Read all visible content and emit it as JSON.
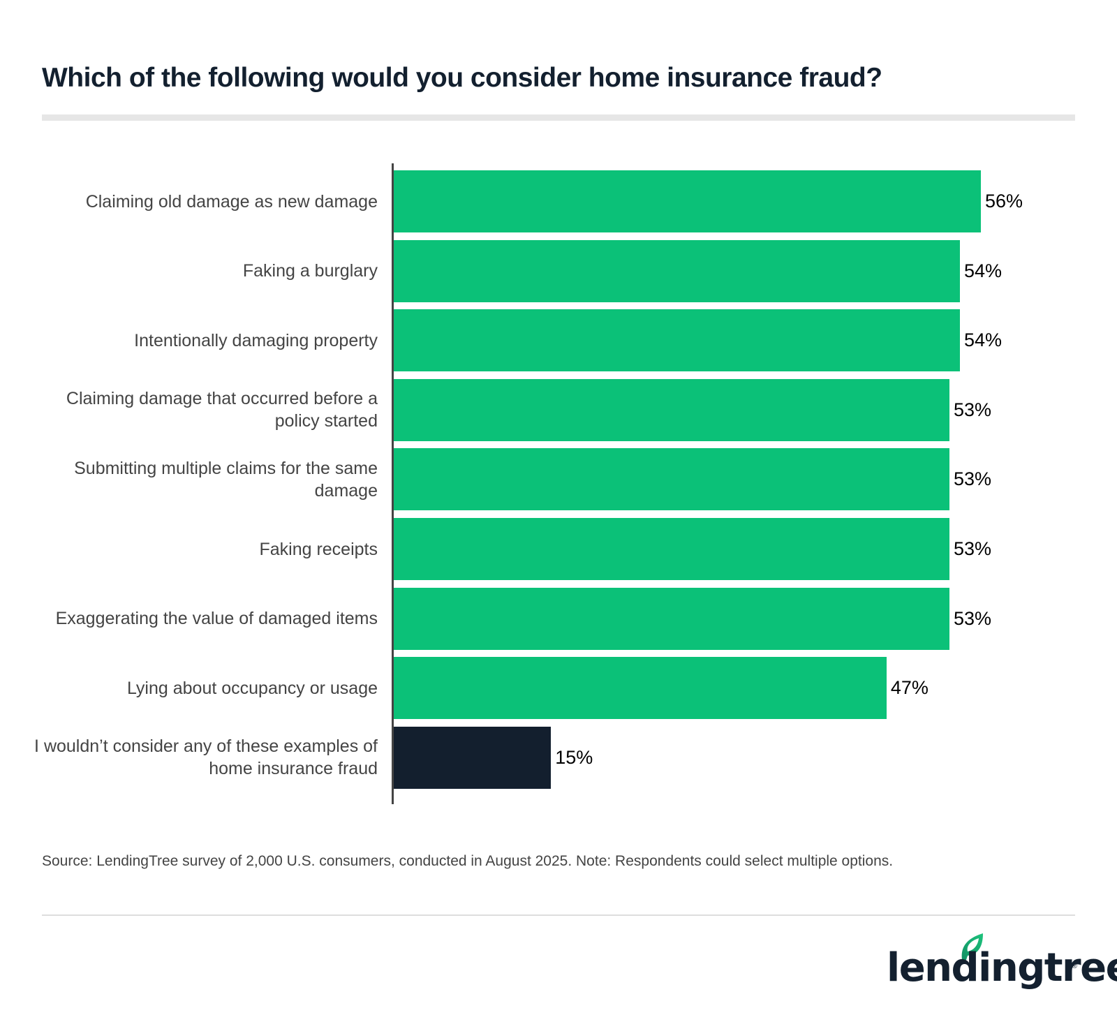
{
  "title": "Which of the following would you consider home insurance fraud?",
  "source": "Source: LendingTree survey of 2,000 U.S. consumers, conducted in August 2025. Note: Respondents could select multiple options.",
  "logo": {
    "text": "lendingtree",
    "registered": "®",
    "icon": "leaf-icon"
  },
  "colors": {
    "primary_bar": "#0bc178",
    "highlight_bar": "#131f2e",
    "title": "#13202f",
    "label": "#444444"
  },
  "rows": [
    {
      "label": "Claiming old damage as new damage",
      "value": 56,
      "value_label": "56%",
      "color": "#0bc178"
    },
    {
      "label": "Faking a burglary",
      "value": 54,
      "value_label": "54%",
      "color": "#0bc178"
    },
    {
      "label": "Intentionally damaging property",
      "value": 54,
      "value_label": "54%",
      "color": "#0bc178"
    },
    {
      "label": "Claiming damage that occurred before a policy started",
      "value": 53,
      "value_label": "53%",
      "color": "#0bc178"
    },
    {
      "label": "Submitting multiple claims for the same damage",
      "value": 53,
      "value_label": "53%",
      "color": "#0bc178"
    },
    {
      "label": "Faking receipts",
      "value": 53,
      "value_label": "53%",
      "color": "#0bc178"
    },
    {
      "label": "Exaggerating the value of damaged items",
      "value": 53,
      "value_label": "53%",
      "color": "#0bc178"
    },
    {
      "label": "Lying about occupancy or usage",
      "value": 47,
      "value_label": "47%",
      "color": "#0bc178"
    },
    {
      "label": "I wouldn’t consider any of these examples of home insurance fraud",
      "value": 15,
      "value_label": "15%",
      "color": "#131f2e"
    }
  ],
  "chart_data": {
    "type": "bar",
    "orientation": "horizontal",
    "title": "Which of the following would you consider home insurance fraud?",
    "categories": [
      "Claiming old damage as new damage",
      "Faking a burglary",
      "Intentionally damaging property",
      "Claiming damage that occurred before a policy started",
      "Submitting multiple claims for the same damage",
      "Faking receipts",
      "Exaggerating the value of damaged items",
      "Lying about occupancy or usage",
      "I wouldn’t consider any of these examples of home insurance fraud"
    ],
    "values": [
      56,
      54,
      54,
      53,
      53,
      53,
      53,
      47,
      15
    ],
    "unit": "%",
    "xlabel": "",
    "ylabel": "",
    "grid": false,
    "legend": null,
    "data_labels": true,
    "source": "Source: LendingTree survey of 2,000 U.S. consumers, conducted in August 2025. Note: Respondents could select multiple options."
  }
}
